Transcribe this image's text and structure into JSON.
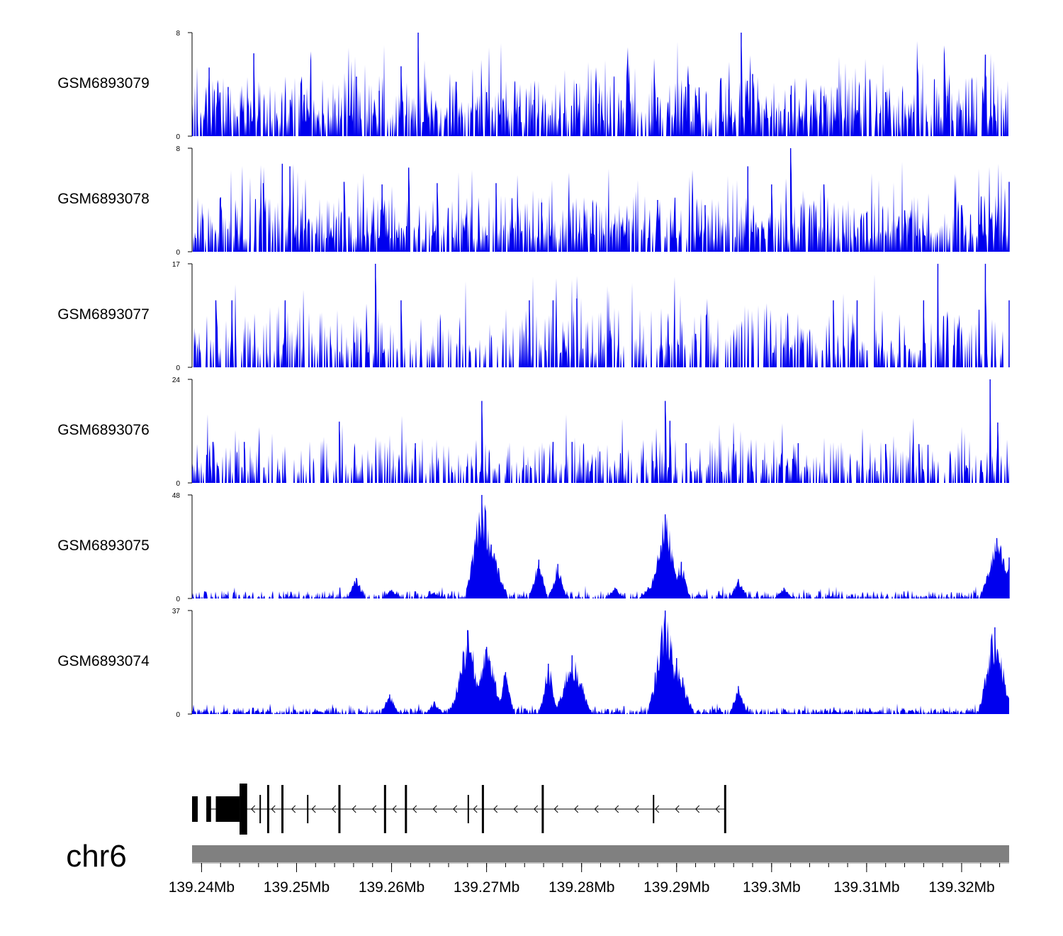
{
  "chart_data": {
    "type": "area",
    "title": "",
    "chromosome": "chr6",
    "xlabel": "",
    "ylabel": "",
    "xlim_mb": [
      139.239,
      139.325
    ],
    "grid": false,
    "series_color": "#0000ee",
    "x_ticks": [
      "139.24Mb",
      "139.25Mb",
      "139.26Mb",
      "139.27Mb",
      "139.28Mb",
      "139.29Mb",
      "139.3Mb",
      "139.31Mb",
      "139.32Mb"
    ],
    "x_tick_values_mb": [
      139.24,
      139.25,
      139.26,
      139.27,
      139.28,
      139.29,
      139.3,
      139.31,
      139.32
    ],
    "tracks": [
      {
        "name": "GSM6893079",
        "ymin": 0,
        "ymax": 8,
        "ymin_label": "0",
        "ymax_label": "8",
        "peaks": [
          [
            139.2408,
            5.3
          ],
          [
            139.2428,
            3.8
          ],
          [
            139.2455,
            6.4
          ],
          [
            139.2508,
            3.2
          ],
          [
            139.2563,
            4.6
          ],
          [
            139.2587,
            3.5
          ],
          [
            139.261,
            5.4
          ],
          [
            139.2628,
            8.0
          ],
          [
            139.2668,
            4.2
          ],
          [
            139.27,
            3.4
          ],
          [
            139.275,
            2.8
          ],
          [
            139.2818,
            2.5
          ],
          [
            139.288,
            3.0
          ],
          [
            139.2913,
            4.0
          ],
          [
            139.2955,
            3.6
          ],
          [
            139.2968,
            8.0
          ],
          [
            139.298,
            4.8
          ],
          [
            139.302,
            3.2
          ],
          [
            139.3055,
            3.1
          ],
          [
            139.312,
            3.4
          ],
          [
            139.3185,
            3.1
          ],
          [
            139.3225,
            6.3
          ]
        ]
      },
      {
        "name": "GSM6893078",
        "ymin": 0,
        "ymax": 8,
        "ymin_label": "0",
        "ymax_label": "8",
        "peaks": [
          [
            139.242,
            4.2
          ],
          [
            139.2465,
            5.3
          ],
          [
            139.2485,
            6.8
          ],
          [
            139.2493,
            6.6
          ],
          [
            139.255,
            5.4
          ],
          [
            139.259,
            5.2
          ],
          [
            139.2618,
            6.5
          ],
          [
            139.2648,
            5.3
          ],
          [
            139.271,
            5.3
          ],
          [
            139.2758,
            3.8
          ],
          [
            139.281,
            1.4
          ],
          [
            139.288,
            4.0
          ],
          [
            139.293,
            3.6
          ],
          [
            139.2975,
            6.6
          ],
          [
            139.3,
            5.2
          ],
          [
            139.302,
            8.0
          ],
          [
            139.3055,
            5.2
          ],
          [
            139.31,
            3.0
          ],
          [
            139.314,
            3.2
          ],
          [
            139.32,
            3.6
          ],
          [
            139.325,
            5.4
          ]
        ]
      },
      {
        "name": "GSM6893077",
        "ymin": 0,
        "ymax": 17,
        "ymin_label": "0",
        "ymax_label": "17",
        "peaks": [
          [
            139.2415,
            11.0
          ],
          [
            139.2432,
            11.0
          ],
          [
            139.2488,
            11.0
          ],
          [
            139.2583,
            17.0
          ],
          [
            139.261,
            11.0
          ],
          [
            139.2745,
            11.0
          ],
          [
            139.277,
            11.0
          ],
          [
            139.2795,
            11.3
          ],
          [
            139.283,
            6.0
          ],
          [
            139.292,
            5.5
          ],
          [
            139.3065,
            11.0
          ],
          [
            139.309,
            11.0
          ],
          [
            139.316,
            11.0
          ],
          [
            139.3175,
            17.0
          ],
          [
            139.3225,
            17.0
          ],
          [
            139.325,
            11.0
          ]
        ]
      },
      {
        "name": "GSM6893076",
        "ymin": 0,
        "ymax": 24,
        "ymin_label": "0",
        "ymax_label": "24",
        "peaks": [
          [
            139.2412,
            9.5
          ],
          [
            139.2445,
            9.5
          ],
          [
            139.2545,
            14.2
          ],
          [
            139.2625,
            9.2
          ],
          [
            139.2695,
            19.0
          ],
          [
            139.277,
            9.5
          ],
          [
            139.279,
            9.5
          ],
          [
            139.2888,
            19.0
          ],
          [
            139.2893,
            14.4
          ],
          [
            139.291,
            9.2
          ],
          [
            139.296,
            9.0
          ],
          [
            139.3028,
            9.2
          ],
          [
            139.312,
            9.0
          ],
          [
            139.3155,
            9.0
          ],
          [
            139.323,
            24.0
          ],
          [
            139.3238,
            14.0
          ]
        ]
      },
      {
        "name": "GSM6893075",
        "ymin": 0,
        "ymax": 48,
        "ymin_label": "0",
        "ymax_label": "48",
        "peaks": [
          [
            139.2563,
            9.5
          ],
          [
            139.26,
            4.0
          ],
          [
            139.2645,
            2.8
          ],
          [
            139.2695,
            48.0
          ],
          [
            139.2705,
            25.0
          ],
          [
            139.2755,
            18.0
          ],
          [
            139.2775,
            16.0
          ],
          [
            139.2835,
            5.0
          ],
          [
            139.287,
            5.2
          ],
          [
            139.2888,
            39.0
          ],
          [
            139.2905,
            17.0
          ],
          [
            139.2965,
            9.0
          ],
          [
            139.3013,
            5.0
          ],
          [
            139.3237,
            28.0
          ],
          [
            139.325,
            19.0
          ]
        ]
      },
      {
        "name": "GSM6893074",
        "ymin": 0,
        "ymax": 37,
        "ymin_label": "0",
        "ymax_label": "37",
        "peaks": [
          [
            139.2598,
            7.0
          ],
          [
            139.2645,
            4.5
          ],
          [
            139.268,
            30.0
          ],
          [
            139.27,
            24.0
          ],
          [
            139.272,
            15.0
          ],
          [
            139.2765,
            18.0
          ],
          [
            139.279,
            21.0
          ],
          [
            139.28,
            11.0
          ],
          [
            139.2888,
            37.0
          ],
          [
            139.29,
            20.0
          ],
          [
            139.2965,
            10.0
          ],
          [
            139.3235,
            31.0
          ]
        ]
      }
    ],
    "gene_model": {
      "strand": "-",
      "start_mb": 139.2405,
      "end_mb": 139.295,
      "exons": [
        [
          139.2405,
          139.241,
          "thin"
        ],
        [
          139.2415,
          139.244,
          "thick"
        ],
        [
          139.244,
          139.2448,
          "tall"
        ],
        [
          139.2461,
          139.2463,
          "line"
        ],
        [
          139.2469,
          139.2471,
          "line"
        ],
        [
          139.2484,
          139.2486,
          "line"
        ],
        [
          139.2511,
          139.2514,
          "line"
        ],
        [
          139.2544,
          139.2548,
          "line"
        ],
        [
          139.2592,
          139.2594,
          "line"
        ],
        [
          139.2614,
          139.2617,
          "line"
        ],
        [
          139.268,
          139.2682,
          "line"
        ],
        [
          139.2695,
          139.2698,
          "line"
        ],
        [
          139.2758,
          139.276,
          "line"
        ],
        [
          139.2875,
          139.288,
          "line"
        ],
        [
          139.295,
          139.2952,
          "line"
        ]
      ],
      "ideogram_color": "#808080"
    }
  }
}
